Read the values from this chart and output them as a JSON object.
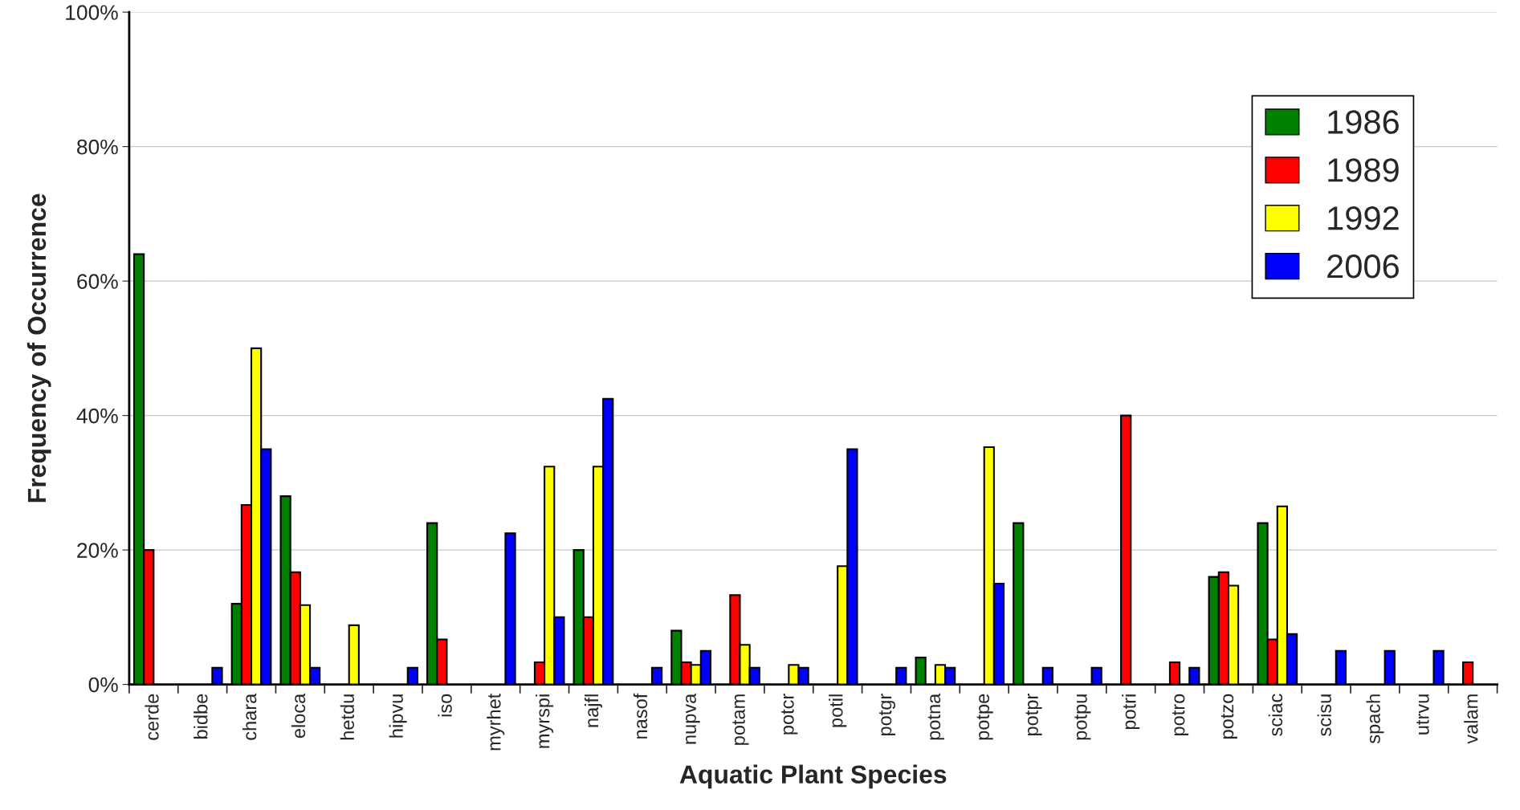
{
  "chart_data": {
    "type": "bar",
    "xlabel": "Aquatic Plant Species",
    "ylabel": "Frequency of Occurrence",
    "categories": [
      "cerde",
      "bidbe",
      "chara",
      "eloca",
      "hetdu",
      "hipvu",
      "iso",
      "myrhet",
      "myrspi",
      "najfl",
      "nasof",
      "nupva",
      "potam",
      "potcr",
      "potil",
      "potgr",
      "potna",
      "potpe",
      "potpr",
      "potpu",
      "potri",
      "potro",
      "potzo",
      "sciac",
      "scisu",
      "spach",
      "utrvu",
      "valam"
    ],
    "series": [
      {
        "name": "1986",
        "color": "#008000",
        "values": [
          64,
          null,
          12,
          28,
          null,
          null,
          24,
          null,
          null,
          20,
          null,
          8,
          null,
          null,
          null,
          null,
          4,
          null,
          24,
          null,
          null,
          null,
          16,
          24,
          null,
          null,
          null,
          null
        ]
      },
      {
        "name": "1989",
        "color": "#ff0000",
        "values": [
          20,
          null,
          26.7,
          16.7,
          null,
          null,
          6.7,
          null,
          3.3,
          10,
          null,
          3.3,
          13.3,
          null,
          null,
          null,
          null,
          null,
          null,
          null,
          40,
          3.3,
          16.7,
          6.7,
          null,
          null,
          null,
          3.3
        ]
      },
      {
        "name": "1992",
        "color": "#ffff00",
        "values": [
          null,
          null,
          50,
          11.8,
          8.8,
          null,
          null,
          null,
          32.4,
          32.4,
          null,
          2.9,
          5.9,
          2.9,
          17.6,
          null,
          2.9,
          35.3,
          null,
          null,
          null,
          null,
          14.7,
          26.5,
          null,
          null,
          null,
          null
        ]
      },
      {
        "name": "2006",
        "color": "#0000ff",
        "values": [
          null,
          2.5,
          35,
          2.5,
          null,
          2.5,
          null,
          22.5,
          10,
          42.5,
          2.5,
          5,
          2.5,
          2.5,
          35,
          2.5,
          2.5,
          15,
          2.5,
          2.5,
          null,
          2.5,
          null,
          7.5,
          5,
          5,
          5,
          null
        ]
      }
    ],
    "ylim": [
      0,
      100
    ],
    "yticks": [
      {
        "value": 0,
        "label": "0%"
      },
      {
        "value": 20,
        "label": "20%"
      },
      {
        "value": 40,
        "label": "40%"
      },
      {
        "value": 60,
        "label": "60%"
      },
      {
        "value": 80,
        "label": "80%"
      },
      {
        "value": 100,
        "label": "100%"
      }
    ],
    "grid": "y",
    "legend": "top right"
  }
}
